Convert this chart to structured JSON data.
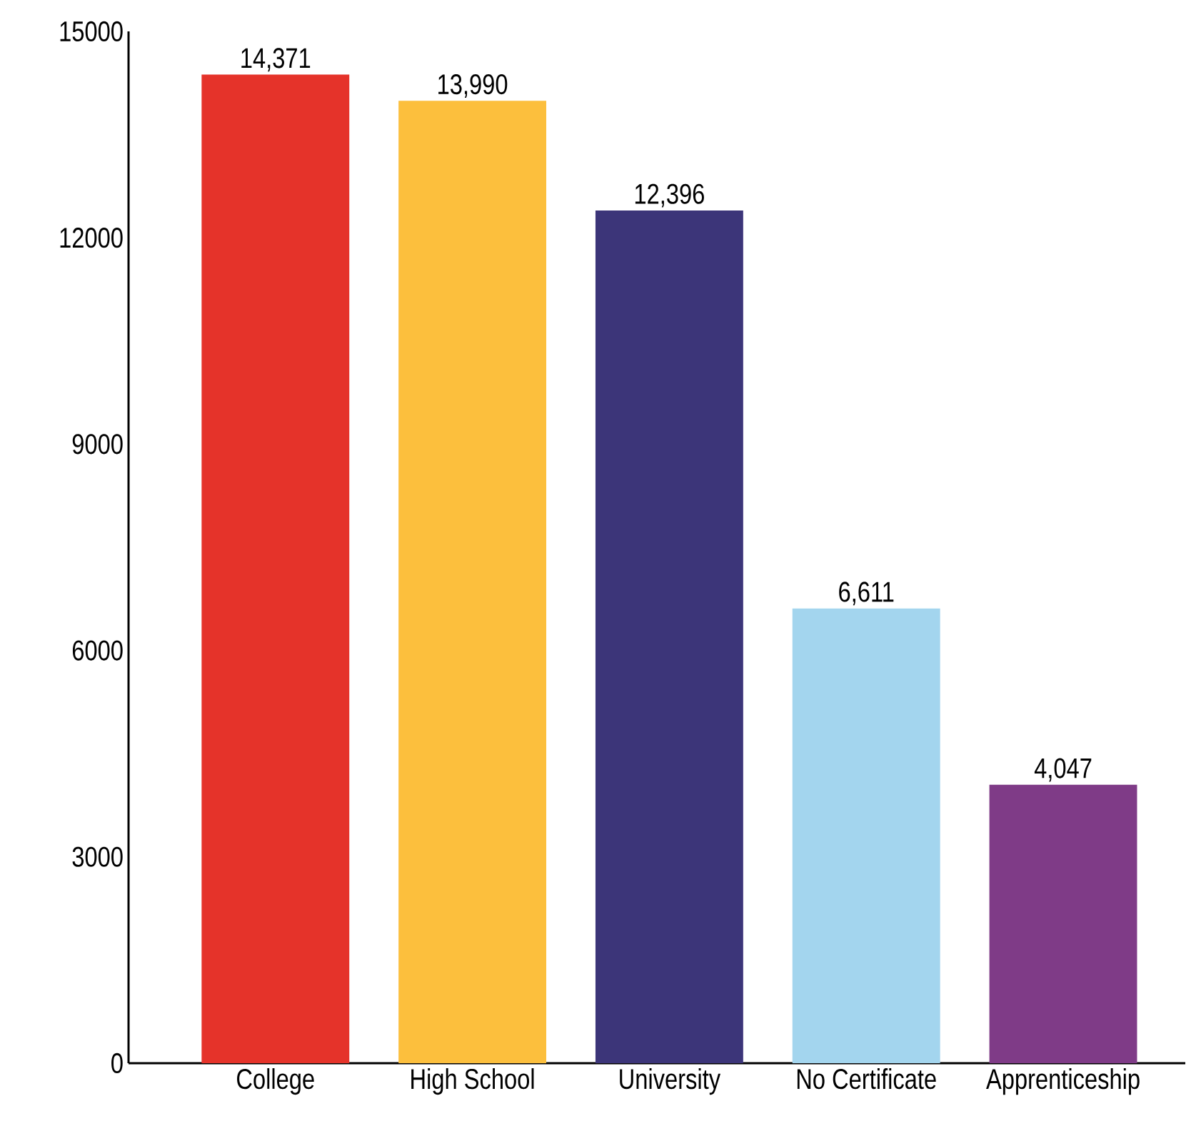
{
  "chart_data": {
    "type": "bar",
    "categories": [
      "College",
      "High School",
      "University",
      "No Certificate",
      "Apprenticeship"
    ],
    "values": [
      14371,
      13990,
      12396,
      6611,
      4047
    ],
    "value_labels": [
      "14,371",
      "13,990",
      "12,396",
      "6,611",
      "4,047"
    ],
    "colors": [
      "#e5332a",
      "#fcbf3d",
      "#3c3579",
      "#a3d5ee",
      "#7f3b87"
    ],
    "ylim": [
      0,
      15000
    ],
    "yticks": [
      0,
      3000,
      6000,
      9000,
      12000,
      15000
    ],
    "grid": false
  }
}
